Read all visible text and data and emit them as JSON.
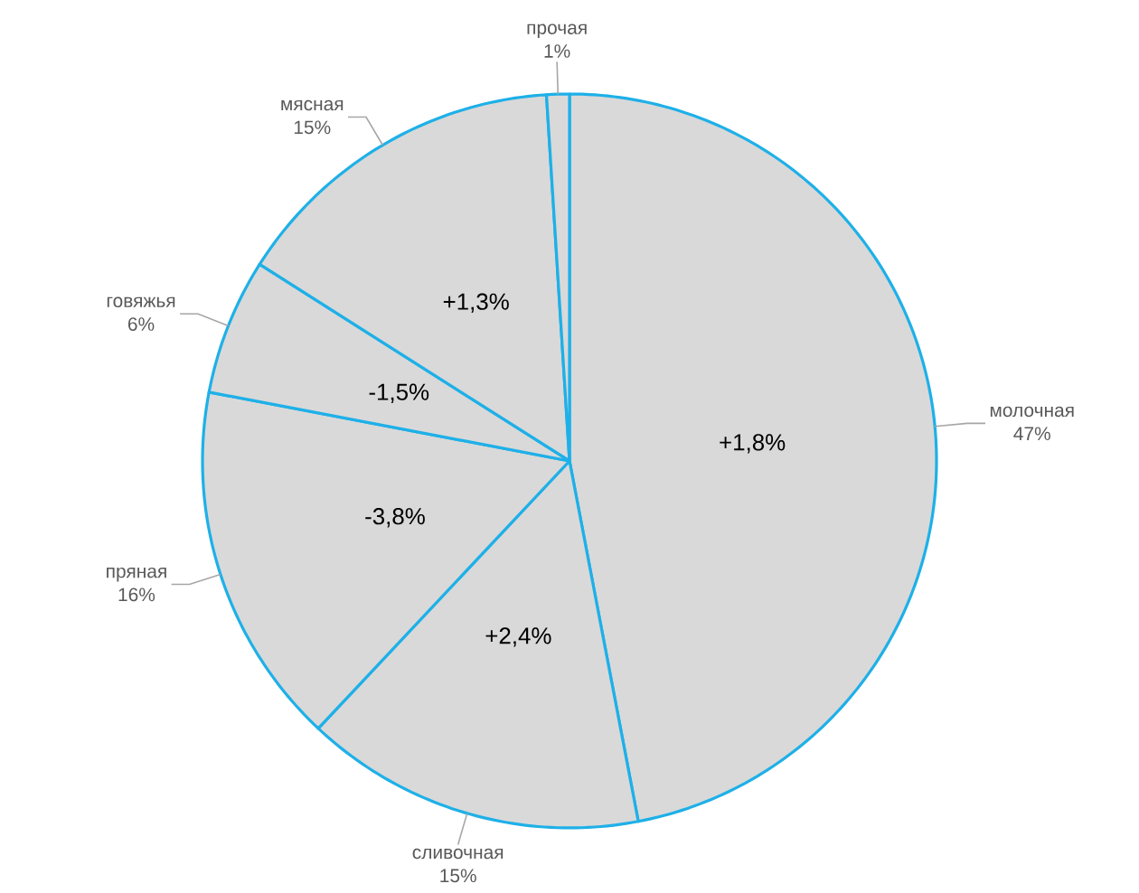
{
  "chart_data": {
    "type": "pie",
    "categories": [
      "молочная",
      "сливочная",
      "пряная",
      "говяжья",
      "мясная",
      "прочая"
    ],
    "values": [
      47,
      15,
      16,
      6,
      15,
      1
    ],
    "value_labels": [
      "47%",
      "15%",
      "16%",
      "6%",
      "15%",
      "1%"
    ],
    "colors": [
      "#d9d9d9",
      "#d9d9d9",
      "#d9d9d9",
      "#d9d9d9",
      "#d9d9d9",
      "#d9d9d9"
    ],
    "annotations": [
      "+1,8%",
      "+2,4%",
      "-3,8%",
      "-1,5%",
      "+1,3%"
    ]
  }
}
